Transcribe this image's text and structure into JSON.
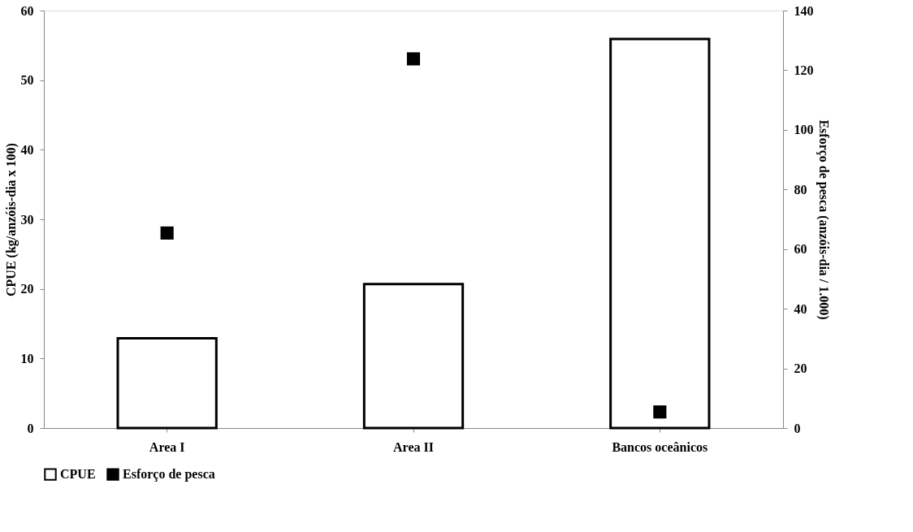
{
  "chart_data": {
    "type": "bar",
    "categories": [
      "Area I",
      "Area II",
      "Bancos oceânicos"
    ],
    "ylabel": "CPUE (kg/anzóis-dia x 100)",
    "y2label": "Esforço de pesca (anzóis-dia / 1.000)",
    "ylim": [
      0,
      60
    ],
    "yticks": [
      0,
      10,
      20,
      30,
      40,
      50,
      60
    ],
    "y2lim": [
      0,
      140
    ],
    "y2ticks": [
      0,
      20,
      40,
      60,
      80,
      100,
      120,
      140
    ],
    "series": [
      {
        "name": "CPUE",
        "color": "#ffffff",
        "values": [
          12.9,
          20.7,
          55.9
        ]
      },
      {
        "name": "Esforço de pesca",
        "type": "scatter",
        "axis": "y2",
        "color": "#000000",
        "marker": "square",
        "values": [
          65.4,
          123.8,
          5.4
        ]
      }
    ],
    "grid": false,
    "legend": "bottom"
  }
}
